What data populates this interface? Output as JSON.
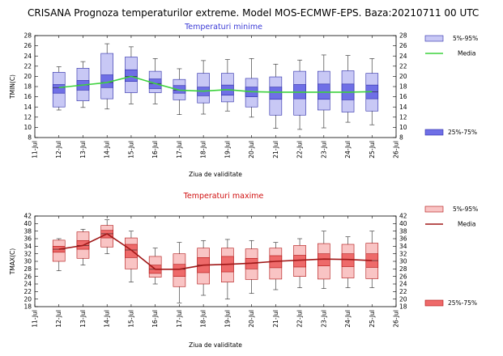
{
  "header": {
    "title": "CRISANA  Prognoza temperaturilor extreme.  Model MOS-ECMWF-EPS. Baza:20210711 00 UTC"
  },
  "colors": {
    "min_panel": "#3b3bd6",
    "min_box_light": "#c8c8f5",
    "min_box_dark": "#6f6fe6",
    "min_line": "#3cd23c",
    "max_panel": "#d01010",
    "max_box_light": "#f9c4c4",
    "max_box_dark": "#ee6a6a",
    "max_line": "#a01818"
  },
  "chart_data": [
    {
      "type": "boxplot",
      "title": "Temperaturi minime",
      "xlabel": "Ziua de validitate",
      "ylabel": "TMIN(C)",
      "ylim": [
        8,
        28
      ],
      "yticks": [
        8,
        10,
        12,
        14,
        16,
        18,
        20,
        22,
        24,
        26,
        28
      ],
      "x_ticks": [
        "11-Jul",
        "12-Jul",
        "13-Jul",
        "14-Jul",
        "15-Jul",
        "16-Jul",
        "17-Jul",
        "18-Jul",
        "19-Jul",
        "20-Jul",
        "21-Jul",
        "22-Jul",
        "23-Jul",
        "24-Jul",
        "25-Jul",
        "26-Jul"
      ],
      "legend": {
        "range_5_95": "5%-95%",
        "median": "Media",
        "range_25_75": "25%-75%"
      },
      "days": [
        {
          "date": "12-Jul",
          "p5": 14.0,
          "p25": 16.7,
          "p50": 17.8,
          "p75": 18.4,
          "p95": 20.8,
          "min": 13.4,
          "max": 21.9
        },
        {
          "date": "13-Jul",
          "p5": 15.2,
          "p25": 17.3,
          "p50": 18.3,
          "p75": 19.2,
          "p95": 21.6,
          "min": 13.9,
          "max": 22.9
        },
        {
          "date": "14-Jul",
          "p5": 15.6,
          "p25": 17.8,
          "p50": 18.8,
          "p75": 20.3,
          "p95": 24.5,
          "min": 13.6,
          "max": 26.4
        },
        {
          "date": "15-Jul",
          "p5": 16.8,
          "p25": 19.0,
          "p50": 20.0,
          "p75": 21.3,
          "p95": 23.8,
          "min": 14.6,
          "max": 25.8
        },
        {
          "date": "16-Jul",
          "p5": 16.8,
          "p25": 17.6,
          "p50": 18.6,
          "p75": 19.5,
          "p95": 21.0,
          "min": 14.6,
          "max": 23.5
        },
        {
          "date": "17-Jul",
          "p5": 15.4,
          "p25": 16.7,
          "p50": 17.3,
          "p75": 18.2,
          "p95": 19.4,
          "min": 12.5,
          "max": 21.5
        },
        {
          "date": "18-Jul",
          "p5": 14.8,
          "p25": 16.2,
          "p50": 17.1,
          "p75": 17.9,
          "p95": 20.6,
          "min": 12.6,
          "max": 23.1
        },
        {
          "date": "19-Jul",
          "p5": 15.0,
          "p25": 16.3,
          "p50": 17.4,
          "p75": 18.3,
          "p95": 20.6,
          "min": 13.2,
          "max": 23.3
        },
        {
          "date": "20-Jul",
          "p5": 14.0,
          "p25": 16.0,
          "p50": 17.0,
          "p75": 17.9,
          "p95": 19.6,
          "min": 12.0,
          "max": 23.5
        },
        {
          "date": "21-Jul",
          "p5": 12.4,
          "p25": 15.5,
          "p50": 16.9,
          "p75": 17.9,
          "p95": 19.9,
          "min": 9.8,
          "max": 22.4
        },
        {
          "date": "22-Jul",
          "p5": 12.4,
          "p25": 15.6,
          "p50": 16.9,
          "p75": 18.4,
          "p95": 21.0,
          "min": 9.6,
          "max": 23.2
        },
        {
          "date": "23-Jul",
          "p5": 13.4,
          "p25": 15.5,
          "p50": 16.9,
          "p75": 18.5,
          "p95": 21.0,
          "min": 9.9,
          "max": 24.2
        },
        {
          "date": "24-Jul",
          "p5": 13.0,
          "p25": 15.4,
          "p50": 16.9,
          "p75": 18.5,
          "p95": 21.1,
          "min": 11.0,
          "max": 24.1
        },
        {
          "date": "25-Jul",
          "p5": 13.2,
          "p25": 15.6,
          "p50": 17.0,
          "p75": 18.3,
          "p95": 20.6,
          "min": 10.5,
          "max": 23.5
        }
      ]
    },
    {
      "type": "boxplot",
      "title": "Temperaturi maxime",
      "xlabel": "Ziua de validitate",
      "ylabel": "TMAX(C)",
      "ylim": [
        18,
        42
      ],
      "yticks": [
        18,
        20,
        22,
        24,
        26,
        28,
        30,
        32,
        34,
        36,
        38,
        40,
        42
      ],
      "x_ticks": [
        "11-Jul",
        "12-Jul",
        "13-Jul",
        "14-Jul",
        "15-Jul",
        "16-Jul",
        "17-Jul",
        "18-Jul",
        "19-Jul",
        "20-Jul",
        "21-Jul",
        "22-Jul",
        "23-Jul",
        "24-Jul",
        "25-Jul",
        "26-Jul"
      ],
      "legend": {
        "range_5_95": "5%-95%",
        "median": "Media",
        "range_25_75": "25%-75%"
      },
      "days": [
        {
          "date": "12-Jul",
          "p5": 30.0,
          "p25": 32.4,
          "p50": 33.2,
          "p75": 34.0,
          "p95": 35.6,
          "min": 27.5,
          "max": 36.0
        },
        {
          "date": "13-Jul",
          "p5": 30.8,
          "p25": 33.2,
          "p50": 34.2,
          "p75": 35.5,
          "p95": 37.8,
          "min": 29.0,
          "max": 38.5
        },
        {
          "date": "14-Jul",
          "p5": 33.8,
          "p25": 36.2,
          "p50": 37.3,
          "p75": 38.2,
          "p95": 39.5,
          "min": 32.0,
          "max": 41.0
        },
        {
          "date": "15-Jul",
          "p5": 28.0,
          "p25": 31.0,
          "p50": 33.0,
          "p75": 34.5,
          "p95": 36.2,
          "min": 24.5,
          "max": 38.0
        },
        {
          "date": "16-Jul",
          "p5": 25.8,
          "p25": 26.8,
          "p50": 27.9,
          "p75": 29.0,
          "p95": 31.3,
          "min": 24.0,
          "max": 33.5
        },
        {
          "date": "17-Jul",
          "p5": 23.3,
          "p25": 26.0,
          "p50": 27.9,
          "p75": 29.2,
          "p95": 32.0,
          "min": 19.0,
          "max": 35.0
        },
        {
          "date": "18-Jul",
          "p5": 24.0,
          "p25": 27.0,
          "p50": 29.0,
          "p75": 31.0,
          "p95": 33.5,
          "min": 21.0,
          "max": 35.5
        },
        {
          "date": "19-Jul",
          "p5": 24.5,
          "p25": 27.2,
          "p50": 29.2,
          "p75": 31.3,
          "p95": 33.5,
          "min": 20.0,
          "max": 35.8
        },
        {
          "date": "20-Jul",
          "p5": 25.2,
          "p25": 28.0,
          "p50": 29.5,
          "p75": 30.8,
          "p95": 33.3,
          "min": 21.5,
          "max": 35.5
        },
        {
          "date": "21-Jul",
          "p5": 25.3,
          "p25": 28.3,
          "p50": 30.0,
          "p75": 31.5,
          "p95": 33.5,
          "min": 22.5,
          "max": 35.0
        },
        {
          "date": "22-Jul",
          "p5": 26.0,
          "p25": 28.5,
          "p50": 30.3,
          "p75": 31.6,
          "p95": 34.2,
          "min": 23.0,
          "max": 36.0
        },
        {
          "date": "23-Jul",
          "p5": 25.3,
          "p25": 28.8,
          "p50": 30.6,
          "p75": 32.0,
          "p95": 34.7,
          "min": 22.8,
          "max": 38.0
        },
        {
          "date": "24-Jul",
          "p5": 25.6,
          "p25": 28.6,
          "p50": 30.5,
          "p75": 32.0,
          "p95": 34.5,
          "min": 23.0,
          "max": 36.5
        },
        {
          "date": "25-Jul",
          "p5": 25.4,
          "p25": 28.4,
          "p50": 30.2,
          "p75": 32.0,
          "p95": 34.8,
          "min": 23.0,
          "max": 38.0
        }
      ]
    }
  ]
}
